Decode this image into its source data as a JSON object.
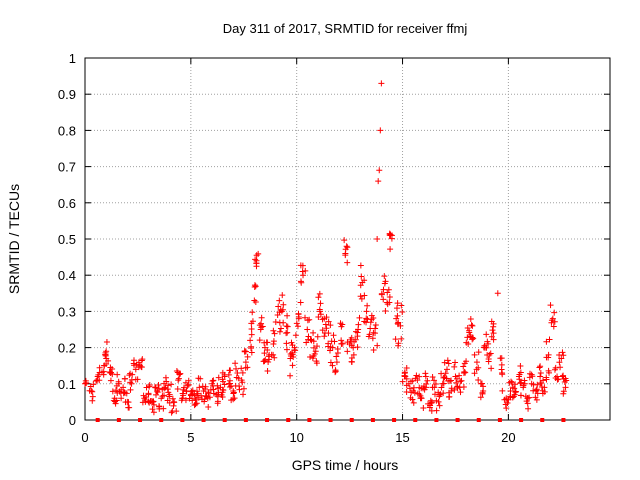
{
  "chart_data": {
    "type": "scatter",
    "title": "Day 311 of 2017, SRMTID for receiver ffmj",
    "xlabel": "GPS time / hours",
    "ylabel": "SRMTID / TECUs",
    "xlim": [
      0,
      24.8
    ],
    "ylim": [
      0,
      1
    ],
    "xticks": [
      0,
      5,
      10,
      15,
      20
    ],
    "yticks": [
      0,
      0.1,
      0.2,
      0.3,
      0.4,
      0.5,
      0.6,
      0.7,
      0.8,
      0.9,
      1
    ],
    "xtick_labels": [
      "0",
      "5",
      "10",
      "15",
      "20"
    ],
    "ytick_labels": [
      "0",
      "0.1",
      "0.2",
      "0.3",
      "0.4",
      "0.5",
      "0.6",
      "0.7",
      "0.8",
      "0.9",
      "1"
    ],
    "grid": true,
    "marker": "+",
    "color": "#ff0000",
    "series": [
      {
        "name": "SRMTID",
        "x": [
          0.0,
          0.3,
          0.6,
          0.9,
          1.0,
          1.2,
          1.4,
          1.6,
          1.8,
          2.0,
          2.2,
          2.4,
          2.6,
          2.8,
          3.0,
          3.2,
          3.4,
          3.6,
          3.8,
          4.0,
          4.2,
          4.4,
          4.6,
          4.8,
          5.0,
          5.2,
          5.4,
          5.6,
          5.8,
          6.0,
          6.2,
          6.4,
          6.6,
          6.8,
          7.0,
          7.2,
          7.4,
          7.6,
          7.8,
          8.0,
          8.1,
          8.3,
          8.5,
          8.7,
          8.9,
          9.1,
          9.3,
          9.5,
          9.7,
          9.9,
          10.1,
          10.3,
          10.5,
          10.7,
          10.9,
          11.1,
          11.3,
          11.5,
          11.7,
          11.9,
          12.1,
          12.3,
          12.5,
          12.7,
          12.9,
          13.1,
          13.3,
          13.5,
          13.7,
          13.8,
          13.85,
          13.9,
          13.95,
          14.0,
          14.1,
          14.3,
          14.5,
          14.7,
          14.9,
          15.1,
          15.3,
          15.5,
          15.7,
          15.9,
          16.1,
          16.3,
          16.5,
          16.7,
          16.9,
          17.1,
          17.3,
          17.5,
          17.7,
          17.9,
          18.1,
          18.3,
          18.5,
          18.7,
          18.9,
          19.1,
          19.3,
          19.5,
          19.7,
          19.9,
          20.1,
          20.3,
          20.5,
          20.7,
          20.9,
          21.1,
          21.3,
          21.5,
          21.7,
          21.9,
          22.1,
          22.3,
          22.5,
          22.7
        ],
        "y": [
          0.1,
          0.08,
          0.12,
          0.15,
          0.19,
          0.13,
          0.06,
          0.1,
          0.09,
          0.05,
          0.1,
          0.14,
          0.15,
          0.06,
          0.07,
          0.05,
          0.08,
          0.06,
          0.09,
          0.07,
          0.05,
          0.11,
          0.06,
          0.08,
          0.07,
          0.06,
          0.09,
          0.08,
          0.06,
          0.1,
          0.07,
          0.09,
          0.12,
          0.1,
          0.08,
          0.13,
          0.11,
          0.16,
          0.22,
          0.33,
          0.44,
          0.25,
          0.2,
          0.18,
          0.21,
          0.29,
          0.3,
          0.24,
          0.17,
          0.2,
          0.28,
          0.4,
          0.25,
          0.22,
          0.19,
          0.3,
          0.28,
          0.24,
          0.2,
          0.16,
          0.22,
          0.46,
          0.21,
          0.18,
          0.25,
          0.38,
          0.3,
          0.27,
          0.24,
          0.5,
          0.66,
          0.69,
          0.8,
          0.93,
          0.36,
          0.32,
          0.51,
          0.28,
          0.26,
          0.12,
          0.1,
          0.08,
          0.11,
          0.06,
          0.12,
          0.04,
          0.09,
          0.05,
          0.1,
          0.14,
          0.08,
          0.12,
          0.09,
          0.13,
          0.21,
          0.26,
          0.14,
          0.1,
          0.2,
          0.18,
          0.24,
          0.35,
          0.13,
          0.06,
          0.08,
          0.07,
          0.12,
          0.09,
          0.06,
          0.1,
          0.08,
          0.12,
          0.09,
          0.18,
          0.28,
          0.12,
          0.17,
          0.09
        ],
        "y_spread": [
          0.03,
          0.03,
          0.03,
          0.04,
          0.03,
          0.04,
          0.03,
          0.03,
          0.03,
          0.03,
          0.03,
          0.03,
          0.02,
          0.03,
          0.03,
          0.03,
          0.02,
          0.03,
          0.03,
          0.03,
          0.03,
          0.03,
          0.03,
          0.03,
          0.02,
          0.03,
          0.03,
          0.03,
          0.03,
          0.03,
          0.03,
          0.03,
          0.04,
          0.04,
          0.03,
          0.04,
          0.04,
          0.04,
          0.05,
          0.06,
          0.03,
          0.06,
          0.05,
          0.05,
          0.05,
          0.05,
          0.05,
          0.05,
          0.05,
          0.05,
          0.05,
          0.04,
          0.05,
          0.05,
          0.04,
          0.05,
          0.05,
          0.05,
          0.05,
          0.05,
          0.05,
          0.04,
          0.05,
          0.05,
          0.05,
          0.05,
          0.05,
          0.05,
          0.05,
          0.0,
          0.0,
          0.0,
          0.0,
          0.0,
          0.06,
          0.06,
          0.04,
          0.06,
          0.06,
          0.05,
          0.04,
          0.04,
          0.04,
          0.03,
          0.04,
          0.02,
          0.04,
          0.03,
          0.04,
          0.04,
          0.03,
          0.04,
          0.04,
          0.04,
          0.05,
          0.04,
          0.05,
          0.04,
          0.05,
          0.05,
          0.05,
          0.0,
          0.05,
          0.03,
          0.03,
          0.03,
          0.03,
          0.03,
          0.03,
          0.03,
          0.03,
          0.04,
          0.03,
          0.05,
          0.04,
          0.04,
          0.05,
          0.03
        ]
      }
    ],
    "baseline_markers_x": [
      0.6,
      1.6,
      2.6,
      3.6,
      4.6,
      5.6,
      6.6,
      7.6,
      8.6,
      9.6,
      10.6,
      11.6,
      12.6,
      13.6,
      14.6,
      15.6,
      16.6,
      17.6,
      18.6,
      19.6,
      20.6,
      21.6,
      22.6
    ]
  }
}
